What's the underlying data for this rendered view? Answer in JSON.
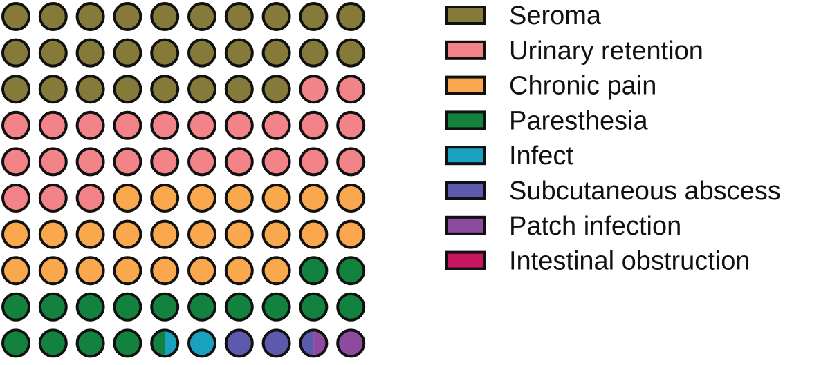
{
  "chart_data": {
    "type": "waffle",
    "grid": {
      "rows": 10,
      "columns": 10
    },
    "series": [
      {
        "name": "Seroma",
        "value": 28,
        "color": "#857a3a"
      },
      {
        "name": "Urinary retention",
        "value": 25,
        "color": "#f28389"
      },
      {
        "name": "Chronic pain",
        "value": 25,
        "color": "#f9a84d"
      },
      {
        "name": "Paresthesia",
        "value": 16.5,
        "color": "#14823f"
      },
      {
        "name": "Infect",
        "value": 1.5,
        "color": "#1aa1bd"
      },
      {
        "name": "Subcutaneous abscess",
        "value": 2.5,
        "color": "#5b5aac"
      },
      {
        "name": "Patch infection",
        "value": 2.5,
        "color": "#8d4a9e"
      },
      {
        "name": "Intestinal obstruction",
        "value": 3,
        "color": "#c7155e"
      }
    ],
    "legend_position": "right"
  }
}
